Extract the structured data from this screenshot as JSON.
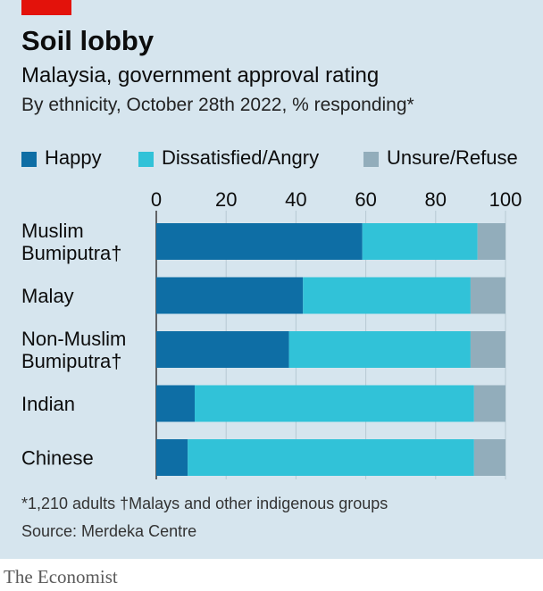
{
  "header": {
    "title": "Soil lobby",
    "subtitle": "Malaysia, government approval rating",
    "subsubtitle": "By ethnicity, October 28th 2022, % responding*"
  },
  "legend": [
    {
      "label": "Happy",
      "color": "#0e6ea5"
    },
    {
      "label": "Dissatisfied/Angry",
      "color": "#31c2d8"
    },
    {
      "label": "Unsure/Refuse",
      "color": "#92adbb"
    }
  ],
  "footer": {
    "footnote": "*1,210 adults    †Malays and other indigenous groups",
    "source": "Source: Merdeka Centre",
    "brand": "The Economist"
  },
  "chart_data": {
    "type": "bar",
    "orientation": "horizontal",
    "stacked": true,
    "categories": [
      [
        "Muslim",
        "Bumiputra†"
      ],
      [
        "Malay"
      ],
      [
        "Non-Muslim",
        "Bumiputra†"
      ],
      [
        "Indian"
      ],
      [
        "Chinese"
      ]
    ],
    "series": [
      {
        "name": "Happy",
        "color": "#0e6ea5",
        "values": [
          59,
          42,
          38,
          11,
          9
        ]
      },
      {
        "name": "Dissatisfied/Angry",
        "color": "#31c2d8",
        "values": [
          33,
          48,
          52,
          80,
          82
        ]
      },
      {
        "name": "Unsure/Refuse",
        "color": "#92adbb",
        "values": [
          8,
          10,
          10,
          9,
          9
        ]
      }
    ],
    "xlim": [
      0,
      100
    ],
    "xticks": [
      0,
      20,
      40,
      60,
      80,
      100
    ],
    "grid": true,
    "axis_position": "top",
    "legend_position": "top-left"
  }
}
